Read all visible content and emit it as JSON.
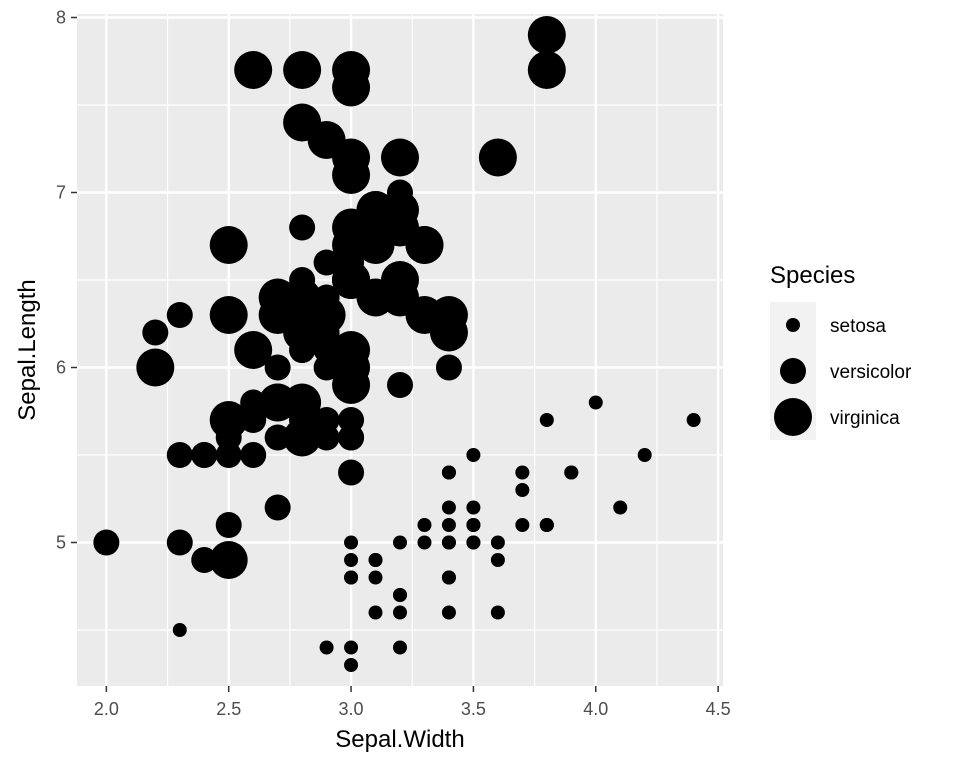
{
  "chart_data": {
    "type": "scatter",
    "xlabel": "Sepal.Width",
    "ylabel": "Sepal.Length",
    "xlim": [
      1.88,
      4.52
    ],
    "ylim": [
      4.18,
      8.02
    ],
    "x_ticks": [
      2.0,
      2.5,
      3.0,
      3.5,
      4.0,
      4.5
    ],
    "x_tick_labels": [
      "2.0",
      "2.5",
      "3.0",
      "3.5",
      "4.0",
      "4.5"
    ],
    "y_ticks": [
      5,
      6,
      7,
      8
    ],
    "y_tick_labels": [
      "5",
      "6",
      "7",
      "8"
    ],
    "grid": true,
    "size_mapping": "Species",
    "legend": {
      "title": "Species",
      "position": "right",
      "entries": [
        "setosa",
        "versicolor",
        "virginica"
      ]
    },
    "series": [
      {
        "name": "setosa",
        "points": [
          [
            3.5,
            5.1
          ],
          [
            3.0,
            4.9
          ],
          [
            3.2,
            4.7
          ],
          [
            3.1,
            4.6
          ],
          [
            3.6,
            5.0
          ],
          [
            3.9,
            5.4
          ],
          [
            3.4,
            4.6
          ],
          [
            3.4,
            5.0
          ],
          [
            2.9,
            4.4
          ],
          [
            3.1,
            4.9
          ],
          [
            3.7,
            5.4
          ],
          [
            3.4,
            4.8
          ],
          [
            3.0,
            4.8
          ],
          [
            3.0,
            4.3
          ],
          [
            4.0,
            5.8
          ],
          [
            4.4,
            5.7
          ],
          [
            3.9,
            5.4
          ],
          [
            3.5,
            5.1
          ],
          [
            3.8,
            5.7
          ],
          [
            3.8,
            5.1
          ],
          [
            3.4,
            5.4
          ],
          [
            3.7,
            5.1
          ],
          [
            3.6,
            4.6
          ],
          [
            3.3,
            5.1
          ],
          [
            3.4,
            4.8
          ],
          [
            3.0,
            5.0
          ],
          [
            3.4,
            5.0
          ],
          [
            3.5,
            5.2
          ],
          [
            3.4,
            5.2
          ],
          [
            3.2,
            4.7
          ],
          [
            3.1,
            4.8
          ],
          [
            3.4,
            5.4
          ],
          [
            4.1,
            5.2
          ],
          [
            4.2,
            5.5
          ],
          [
            3.1,
            4.9
          ],
          [
            3.2,
            5.0
          ],
          [
            3.5,
            5.5
          ],
          [
            3.6,
            4.9
          ],
          [
            3.0,
            4.4
          ],
          [
            3.4,
            5.1
          ],
          [
            3.5,
            5.0
          ],
          [
            2.3,
            4.5
          ],
          [
            3.2,
            4.4
          ],
          [
            3.5,
            5.0
          ],
          [
            3.8,
            5.1
          ],
          [
            3.0,
            4.8
          ],
          [
            3.8,
            5.1
          ],
          [
            3.2,
            4.6
          ],
          [
            3.7,
            5.3
          ],
          [
            3.3,
            5.0
          ]
        ]
      },
      {
        "name": "versicolor",
        "points": [
          [
            3.2,
            7.0
          ],
          [
            3.2,
            6.4
          ],
          [
            3.1,
            6.9
          ],
          [
            2.3,
            5.5
          ],
          [
            2.8,
            6.5
          ],
          [
            2.8,
            5.7
          ],
          [
            3.3,
            6.3
          ],
          [
            2.4,
            4.9
          ],
          [
            2.9,
            6.6
          ],
          [
            2.7,
            5.2
          ],
          [
            2.0,
            5.0
          ],
          [
            3.0,
            5.9
          ],
          [
            2.2,
            6.0
          ],
          [
            2.9,
            6.1
          ],
          [
            2.9,
            5.6
          ],
          [
            3.1,
            6.7
          ],
          [
            3.0,
            5.6
          ],
          [
            2.7,
            5.8
          ],
          [
            2.2,
            6.2
          ],
          [
            2.5,
            5.6
          ],
          [
            3.2,
            5.9
          ],
          [
            2.8,
            6.1
          ],
          [
            2.5,
            6.3
          ],
          [
            2.8,
            6.1
          ],
          [
            2.9,
            6.4
          ],
          [
            3.0,
            6.6
          ],
          [
            2.8,
            6.8
          ],
          [
            3.0,
            6.7
          ],
          [
            2.9,
            6.0
          ],
          [
            2.6,
            5.7
          ],
          [
            2.4,
            5.5
          ],
          [
            2.4,
            5.5
          ],
          [
            2.7,
            5.8
          ],
          [
            2.7,
            6.0
          ],
          [
            3.0,
            5.4
          ],
          [
            3.4,
            6.0
          ],
          [
            3.1,
            6.7
          ],
          [
            2.3,
            6.3
          ],
          [
            3.0,
            5.6
          ],
          [
            2.5,
            5.5
          ],
          [
            2.6,
            5.5
          ],
          [
            3.0,
            6.1
          ],
          [
            2.6,
            5.8
          ],
          [
            2.3,
            5.0
          ],
          [
            2.7,
            5.6
          ],
          [
            3.0,
            5.7
          ],
          [
            2.9,
            5.7
          ],
          [
            2.9,
            6.2
          ],
          [
            2.5,
            5.1
          ],
          [
            2.8,
            5.7
          ]
        ]
      },
      {
        "name": "virginica",
        "points": [
          [
            3.3,
            6.3
          ],
          [
            2.7,
            5.8
          ],
          [
            3.0,
            7.1
          ],
          [
            2.9,
            6.3
          ],
          [
            3.0,
            6.5
          ],
          [
            3.0,
            7.6
          ],
          [
            2.5,
            4.9
          ],
          [
            2.9,
            7.3
          ],
          [
            2.5,
            6.7
          ],
          [
            3.6,
            7.2
          ],
          [
            3.2,
            6.5
          ],
          [
            2.7,
            6.4
          ],
          [
            3.0,
            6.8
          ],
          [
            2.5,
            5.7
          ],
          [
            2.8,
            5.8
          ],
          [
            3.2,
            6.4
          ],
          [
            3.0,
            6.5
          ],
          [
            3.8,
            7.7
          ],
          [
            2.6,
            7.7
          ],
          [
            2.2,
            6.0
          ],
          [
            3.2,
            6.9
          ],
          [
            2.8,
            5.6
          ],
          [
            2.8,
            7.7
          ],
          [
            2.7,
            6.3
          ],
          [
            3.3,
            6.7
          ],
          [
            3.2,
            7.2
          ],
          [
            2.8,
            6.2
          ],
          [
            3.0,
            6.1
          ],
          [
            2.8,
            6.4
          ],
          [
            3.0,
            7.2
          ],
          [
            2.8,
            7.4
          ],
          [
            3.8,
            7.9
          ],
          [
            2.8,
            6.4
          ],
          [
            2.8,
            6.3
          ],
          [
            2.6,
            6.1
          ],
          [
            3.0,
            7.7
          ],
          [
            3.4,
            6.3
          ],
          [
            3.1,
            6.4
          ],
          [
            3.0,
            6.0
          ],
          [
            3.1,
            6.9
          ],
          [
            3.1,
            6.7
          ],
          [
            3.1,
            6.9
          ],
          [
            2.7,
            5.8
          ],
          [
            3.2,
            6.8
          ],
          [
            3.3,
            6.7
          ],
          [
            3.0,
            6.7
          ],
          [
            2.5,
            6.3
          ],
          [
            3.0,
            6.5
          ],
          [
            3.4,
            6.2
          ],
          [
            3.0,
            5.9
          ]
        ]
      }
    ]
  }
}
